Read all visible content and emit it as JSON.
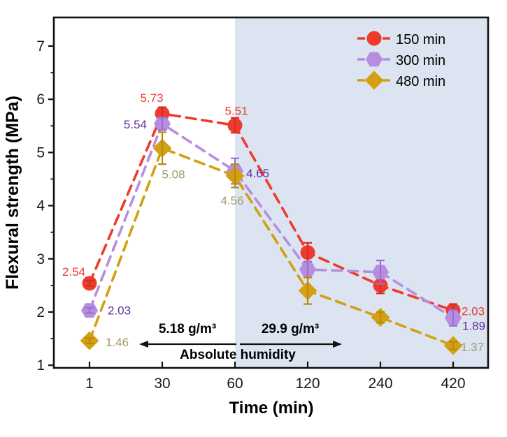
{
  "chart_data": {
    "type": "line",
    "title": "",
    "xlabel": "Time (min)",
    "ylabel": "Flexural strength (MPa)",
    "categories": [
      "1",
      "30",
      "60",
      "120",
      "240",
      "420"
    ],
    "y_ticks": [
      1,
      2,
      3,
      4,
      5,
      6,
      7
    ],
    "y_minor_ticks": [
      1.5,
      2.5,
      3.5,
      4.5,
      5.5,
      6.5
    ],
    "ylim": [
      0.95,
      7.55
    ],
    "grid": "off",
    "legend_position": "top-right",
    "axis_color": "#111111",
    "shaded_region": {
      "from_category": "60",
      "to": "right-edge",
      "color": "#dce4f1"
    },
    "series": [
      {
        "name": "150 min",
        "marker": "circle",
        "color": "#ee3b2e",
        "error_color": "#d02f24",
        "label_color": "#ee3b2e",
        "values": [
          2.54,
          5.73,
          5.51,
          3.12,
          2.5,
          2.03
        ],
        "errors": [
          0.05,
          0.12,
          0.14,
          0.18,
          0.15,
          0.12
        ],
        "point_labels": [
          "2.54",
          "5.73",
          "5.51",
          null,
          null,
          "2.03"
        ],
        "label_offsets": [
          [
            -6,
            -11,
            "end"
          ],
          [
            -15,
            -17,
            "middle"
          ],
          [
            2,
            -15,
            "middle"
          ],
          null,
          null,
          [
            12,
            7,
            "start"
          ]
        ]
      },
      {
        "name": "300 min",
        "marker": "hexagon",
        "color": "#b78de0",
        "error_color": "#9d6ed1",
        "label_color": "#5f2f9e",
        "values": [
          2.03,
          5.54,
          4.65,
          2.8,
          2.75,
          1.89
        ],
        "errors": [
          0.05,
          0.12,
          0.24,
          0.15,
          0.22,
          0.15
        ],
        "point_labels": [
          "2.03",
          "5.54",
          "4.65",
          null,
          null,
          "1.89"
        ],
        "label_offsets": [
          [
            26,
            6,
            "start"
          ],
          [
            -22,
            7,
            "end"
          ],
          [
            16,
            9,
            "start"
          ],
          null,
          null,
          [
            13,
            17,
            "start"
          ]
        ]
      },
      {
        "name": "480 min",
        "marker": "diamond",
        "color": "#d2a012",
        "error_color": "#b88b0c",
        "label_color": "#a39a68",
        "values": [
          1.46,
          5.08,
          4.56,
          2.4,
          1.9,
          1.37
        ],
        "errors": [
          0.05,
          0.3,
          0.22,
          0.25,
          0.1,
          0.07
        ],
        "point_labels": [
          "1.46",
          "5.08",
          "4.56",
          null,
          null,
          "1.37"
        ],
        "label_offsets": [
          [
            23,
            8,
            "start"
          ],
          [
            16,
            43,
            "middle"
          ],
          [
            -4,
            41,
            "middle"
          ],
          null,
          null,
          [
            11,
            8,
            "start"
          ]
        ]
      }
    ],
    "annotations": {
      "left_value": "5.18 g/m³",
      "right_value": "29.9 g/m³",
      "caption": "Absolute humidity"
    }
  }
}
